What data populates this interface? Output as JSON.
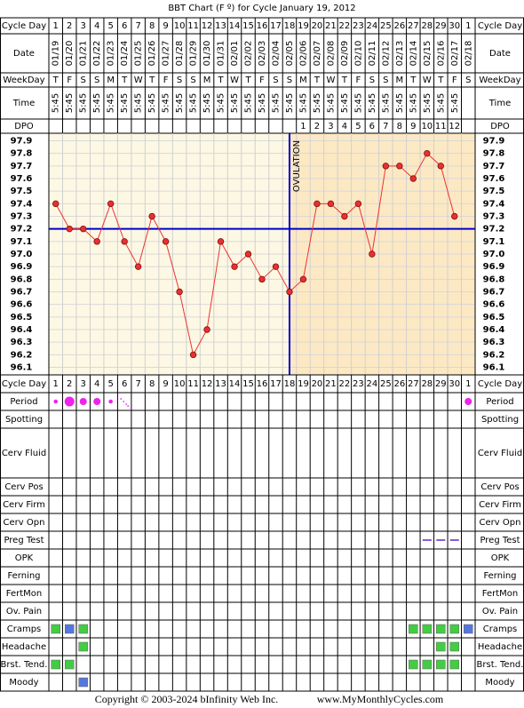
{
  "title": "BBT Chart (F º) for Cycle January 19, 2012",
  "labels": {
    "cycle_day": "Cycle Day",
    "date": "Date",
    "weekday": "WeekDay",
    "time": "Time",
    "dpo": "DPO",
    "ovulation": "OVULATION"
  },
  "cycle_days": [
    1,
    2,
    3,
    4,
    5,
    6,
    7,
    8,
    9,
    10,
    11,
    12,
    13,
    14,
    15,
    16,
    17,
    18,
    19,
    20,
    21,
    22,
    23,
    24,
    25,
    26,
    27,
    28,
    29,
    30,
    1
  ],
  "dates": [
    "01/19",
    "01/20",
    "01/21",
    "01/22",
    "01/23",
    "01/24",
    "01/25",
    "01/26",
    "01/27",
    "01/28",
    "01/29",
    "01/30",
    "01/31",
    "02/01",
    "02/02",
    "02/03",
    "02/04",
    "02/05",
    "02/06",
    "02/07",
    "02/08",
    "02/09",
    "02/10",
    "02/11",
    "02/12",
    "02/13",
    "02/14",
    "02/15",
    "02/16",
    "02/17",
    "02/18"
  ],
  "weekdays": [
    "T",
    "F",
    "S",
    "S",
    "M",
    "T",
    "W",
    "T",
    "F",
    "S",
    "S",
    "M",
    "T",
    "W",
    "T",
    "F",
    "S",
    "S",
    "M",
    "T",
    "W",
    "T",
    "F",
    "S",
    "S",
    "M",
    "T",
    "W",
    "T",
    "F",
    "S"
  ],
  "times": [
    "5:45",
    "5:45",
    "5:45",
    "5:45",
    "5:45",
    "5:45",
    "5:45",
    "5:45",
    "5:45",
    "5:45",
    "5:45",
    "5:45",
    "5:45",
    "5:45",
    "5:45",
    "5:45",
    "5:45",
    "5:45",
    "5:45",
    "5:45",
    "5:45",
    "5:45",
    "5:45",
    "5:45",
    "5:45",
    "5:45",
    "5:45",
    "5:45",
    "5:45",
    "5:45",
    null
  ],
  "dpo": [
    null,
    null,
    null,
    null,
    null,
    null,
    null,
    null,
    null,
    null,
    null,
    null,
    null,
    null,
    null,
    null,
    null,
    null,
    1,
    2,
    3,
    4,
    5,
    6,
    7,
    8,
    9,
    10,
    11,
    12,
    null
  ],
  "chart_data": {
    "type": "line",
    "values": [
      97.4,
      97.2,
      97.2,
      97.1,
      97.4,
      97.1,
      96.9,
      97.3,
      97.1,
      96.7,
      96.2,
      96.4,
      97.1,
      96.9,
      97.0,
      96.8,
      96.9,
      96.7,
      96.8,
      97.4,
      97.4,
      97.3,
      97.4,
      97.0,
      97.7,
      97.7,
      97.6,
      97.8,
      97.7,
      97.3,
      null
    ],
    "color": "#ee3333",
    "ylim": [
      96.04,
      97.96
    ],
    "yticks": [
      97.9,
      97.8,
      97.7,
      97.6,
      97.5,
      97.4,
      97.3,
      97.2,
      97.1,
      {
        "value": 97.0,
        "label": "97.0"
      },
      96.9,
      96.8,
      96.7,
      96.6,
      96.5,
      96.4,
      96.3,
      96.2,
      96.1
    ],
    "coverline": 97.2,
    "coverline_color": "#0000cc",
    "ovulation_day": 18,
    "pre_color": "#fdf8e4",
    "post_color": "#fce9c4"
  },
  "symptom_rows": [
    {
      "label": "Period",
      "marks": [
        {
          "day": 1,
          "style": "dot-small"
        },
        {
          "day": 2,
          "style": "dot-large"
        },
        {
          "day": 3,
          "style": "dot-medium"
        },
        {
          "day": 4,
          "style": "dot-medium"
        },
        {
          "day": 5,
          "style": "dot-small"
        },
        {
          "day": 6,
          "style": "spotting"
        },
        {
          "day": 31,
          "style": "dot-medium"
        }
      ]
    },
    {
      "label": "Spotting",
      "marks": []
    },
    {
      "label": "Cerv Fluid",
      "marks": []
    },
    {
      "label": "Cerv Pos",
      "marks": []
    },
    {
      "label": "Cerv Firm",
      "marks": []
    },
    {
      "label": "Cerv Opn",
      "marks": []
    },
    {
      "label": "Preg Test",
      "marks": [
        {
          "day": 28,
          "style": "dash"
        },
        {
          "day": 29,
          "style": "dash"
        },
        {
          "day": 30,
          "style": "dash"
        }
      ]
    },
    {
      "label": "OPK",
      "marks": []
    },
    {
      "label": "Ferning",
      "marks": []
    },
    {
      "label": "FertMon",
      "marks": []
    },
    {
      "label": "Ov. Pain",
      "marks": []
    },
    {
      "label": "Cramps",
      "marks": [
        {
          "day": 1,
          "style": "green"
        },
        {
          "day": 2,
          "style": "blue"
        },
        {
          "day": 3,
          "style": "green"
        },
        {
          "day": 27,
          "style": "green"
        },
        {
          "day": 28,
          "style": "green"
        },
        {
          "day": 29,
          "style": "green"
        },
        {
          "day": 30,
          "style": "green"
        },
        {
          "day": 31,
          "style": "blue"
        }
      ]
    },
    {
      "label": "Headache",
      "marks": [
        {
          "day": 3,
          "style": "green"
        },
        {
          "day": 29,
          "style": "green"
        },
        {
          "day": 30,
          "style": "green"
        }
      ]
    },
    {
      "label": "Brst. Tend.",
      "marks": [
        {
          "day": 1,
          "style": "green"
        },
        {
          "day": 2,
          "style": "green"
        },
        {
          "day": 27,
          "style": "green"
        },
        {
          "day": 28,
          "style": "green"
        },
        {
          "day": 29,
          "style": "green"
        },
        {
          "day": 30,
          "style": "green"
        }
      ]
    },
    {
      "label": "Moody",
      "marks": [
        {
          "day": 3,
          "style": "blue"
        }
      ]
    }
  ],
  "footer": {
    "copyright": "Copyright © 2003-2024 bInfinity Web Inc.",
    "site": "www.MyMonthlyCycles.com"
  }
}
